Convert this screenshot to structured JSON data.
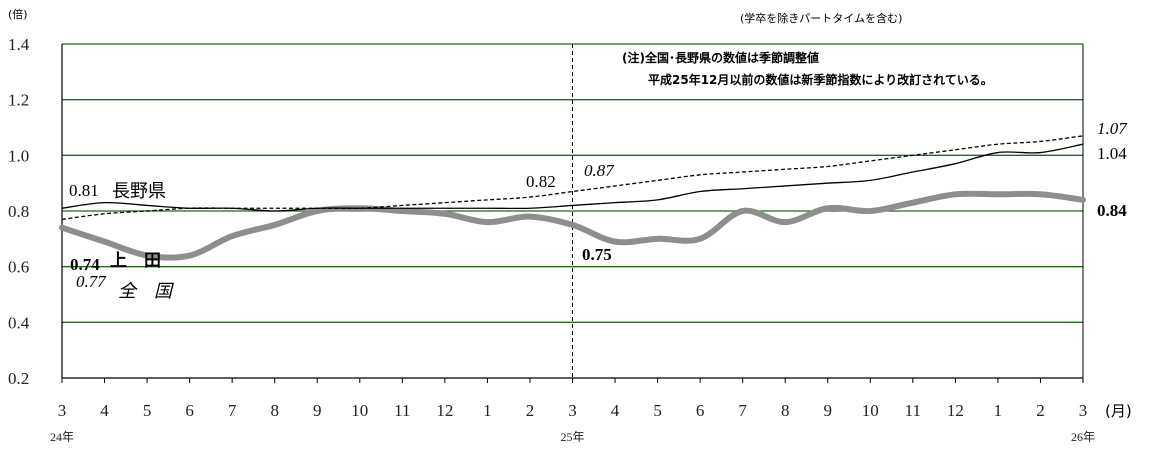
{
  "chart_data": {
    "type": "line",
    "yunit_label": "(倍)",
    "xunit_label": "(月)",
    "note_top": "(学卒を除きパートタイムを含む)",
    "note_box": [
      "(注)全国･長野県の数値は季節調整値",
      "平成25年12月以前の数値は新季節指数により改訂されている。"
    ],
    "ylim": [
      0.2,
      1.4
    ],
    "yticks": [
      "1.4",
      "1.2",
      "1.0",
      "0.8",
      "0.6",
      "0.4",
      "0.2"
    ],
    "categories": [
      "3",
      "4",
      "5",
      "6",
      "7",
      "8",
      "9",
      "10",
      "11",
      "12",
      "1",
      "2",
      "3",
      "4",
      "5",
      "6",
      "7",
      "8",
      "9",
      "10",
      "11",
      "12",
      "1",
      "2",
      "3"
    ],
    "year_labels": [
      {
        "index": 0,
        "text": "24年"
      },
      {
        "index": 12,
        "text": "25年"
      },
      {
        "index": 24,
        "text": "26年"
      }
    ],
    "grid": true,
    "divider_index": 12,
    "series": [
      {
        "name": "長野県",
        "style": "solid-thin",
        "color": "#000000",
        "values": [
          0.81,
          0.83,
          0.82,
          0.81,
          0.81,
          0.8,
          0.81,
          0.81,
          0.81,
          0.81,
          0.81,
          0.81,
          0.82,
          0.83,
          0.84,
          0.87,
          0.88,
          0.89,
          0.9,
          0.91,
          0.94,
          0.97,
          1.01,
          1.01,
          1.04
        ]
      },
      {
        "name": "全　国",
        "style": "dashed",
        "color": "#000000",
        "values": [
          0.77,
          0.79,
          0.8,
          0.81,
          0.81,
          0.81,
          0.81,
          0.81,
          0.82,
          0.83,
          0.84,
          0.85,
          0.87,
          0.89,
          0.91,
          0.93,
          0.94,
          0.95,
          0.96,
          0.98,
          1.0,
          1.02,
          1.04,
          1.05,
          1.07
        ]
      },
      {
        "name": "上　田",
        "style": "thick-gray",
        "color": "#8e8e8e",
        "values": [
          0.74,
          0.69,
          0.64,
          0.64,
          0.71,
          0.75,
          0.8,
          0.81,
          0.8,
          0.79,
          0.76,
          0.78,
          0.75,
          0.69,
          0.7,
          0.7,
          0.8,
          0.76,
          0.81,
          0.8,
          0.83,
          0.86,
          0.86,
          0.86,
          0.84
        ]
      }
    ],
    "annotations": {
      "nagano_start": "0.81",
      "nagano_label": "長野県",
      "nagano_mid": "0.82",
      "nagano_end": "1.04",
      "zenkoku_start": "0.77",
      "zenkoku_label": "全　国",
      "zenkoku_mid": "0.87",
      "zenkoku_end": "1.07",
      "ueda_start": "0.74",
      "ueda_label": "上　田",
      "ueda_mid": "0.75",
      "ueda_end": "0.84"
    }
  }
}
